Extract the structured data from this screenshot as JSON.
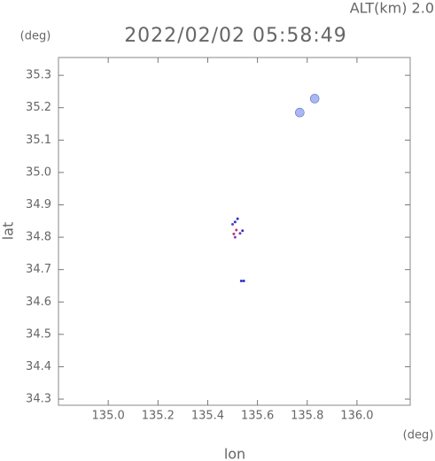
{
  "chart_data": {
    "type": "scatter",
    "title": "2022/02/02 05:58:49",
    "annotation": "ALT(km) 2.0",
    "y_unit": "(deg)",
    "x_unit": "(deg)",
    "xlabel": "lon",
    "ylabel": "lat",
    "x": [
      135.77,
      135.83,
      135.52,
      135.51,
      135.5,
      135.515,
      135.505,
      135.51,
      135.54,
      135.53,
      135.535,
      135.545
    ],
    "y": [
      35.185,
      35.228,
      34.857,
      34.847,
      34.84,
      34.822,
      34.81,
      34.8,
      34.82,
      34.812,
      34.665,
      34.665
    ],
    "sizes": [
      5,
      5,
      1.5,
      1.5,
      1.5,
      1.5,
      1.5,
      1.5,
      1.5,
      1.5,
      1.5,
      1.5
    ],
    "colors": [
      "#a8b8f0",
      "#a8b8f0",
      "#3030d0",
      "#3030d0",
      "#6040c0",
      "#c03080",
      "#c03080",
      "#8040c0",
      "#3030d0",
      "#6040c0",
      "#3030d0",
      "#3030d0"
    ],
    "xlim": [
      134.8,
      136.214
    ],
    "ylim": [
      34.281,
      35.355
    ],
    "xticks": [
      {
        "value": 135.0,
        "label": "135.0"
      },
      135.2,
      135.4,
      135.6,
      135.8,
      {
        "value": 136.0,
        "label": "136.0"
      }
    ],
    "yticks": [
      35.3,
      35.2,
      35.1,
      {
        "value": 35.0,
        "label": "35.0"
      },
      34.9,
      34.8,
      34.7,
      34.6,
      34.5,
      34.4,
      34.3
    ]
  }
}
